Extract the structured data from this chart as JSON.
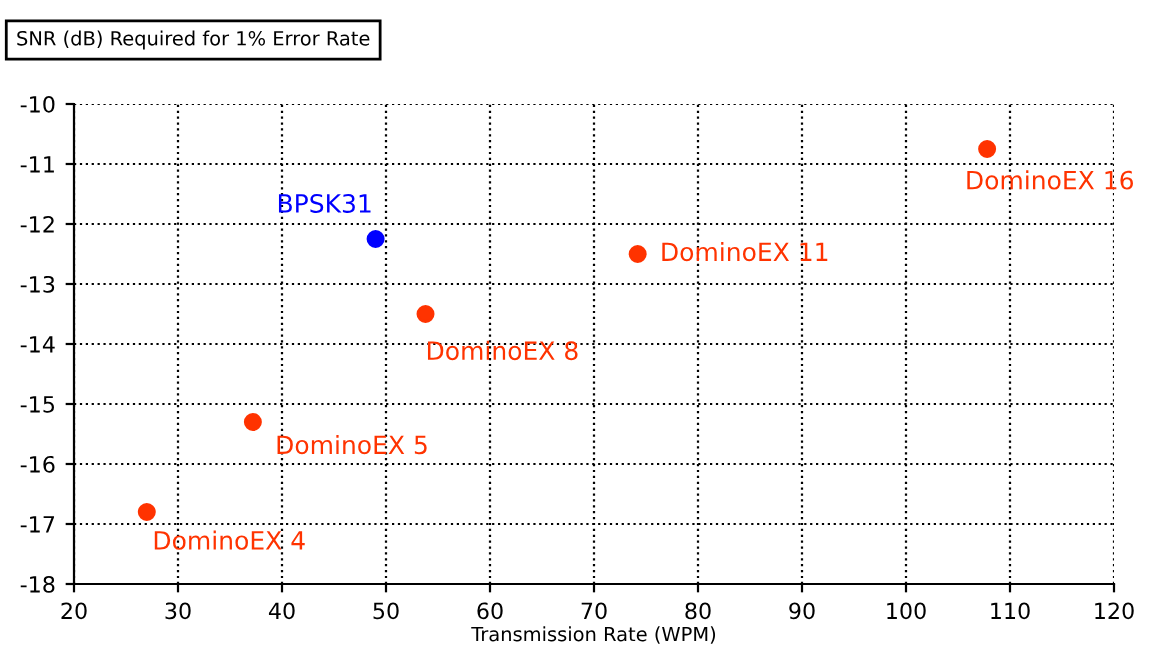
{
  "chart_data": {
    "type": "scatter",
    "title": "SNR (dB) Required for 1% Error Rate",
    "xlabel": "Transmission Rate (WPM)",
    "series": [
      {
        "name": "DominoEX 4",
        "color": "#ff3300",
        "x": [
          27
        ],
        "values": [
          -16.8
        ]
      },
      {
        "name": "DominoEX 5",
        "color": "#ff3300",
        "x": [
          37.2
        ],
        "values": [
          -15.3
        ]
      },
      {
        "name": "BPSK31",
        "color": "#0000ff",
        "x": [
          49
        ],
        "values": [
          -12.25
        ]
      },
      {
        "name": "DominoEX 8",
        "color": "#ff3300",
        "x": [
          53.8
        ],
        "values": [
          -13.5
        ]
      },
      {
        "name": "DominoEX 11",
        "color": "#ff3300",
        "x": [
          74.2
        ],
        "values": [
          -12.5
        ]
      },
      {
        "name": "DominoEX 16",
        "color": "#ff3300",
        "x": [
          107.8
        ],
        "values": [
          -10.75
        ]
      }
    ],
    "xlim": [
      20,
      120
    ],
    "xticks": [
      20,
      30,
      40,
      50,
      60,
      70,
      80,
      90,
      100,
      110,
      120
    ],
    "ylim": [
      -18,
      -10
    ],
    "yticks": [
      -18,
      -17,
      -16,
      -15,
      -14,
      -13,
      -12,
      -11,
      -10
    ],
    "grid": true,
    "marker": "circle",
    "legend": false
  }
}
